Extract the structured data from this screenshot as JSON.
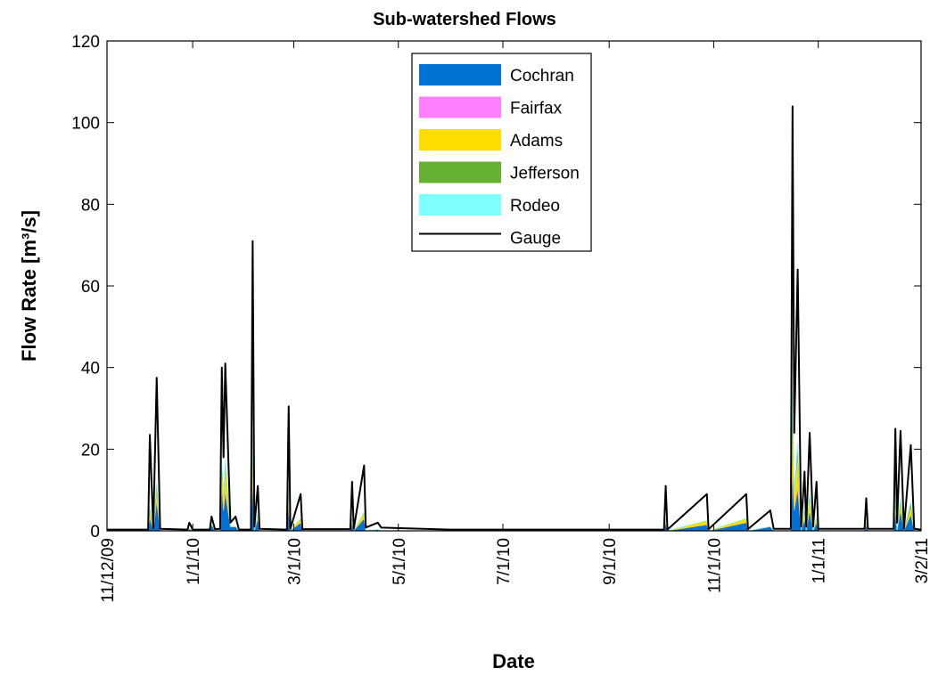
{
  "chart_data": {
    "type": "area",
    "title": "Sub-watershed Flows",
    "x_label": "Date",
    "y_label": "Flow Rate [m³/s]",
    "x": [
      "11/12/09",
      "12/6/09",
      "12/7/09",
      "12/9/09",
      "12/11/09",
      "12/13/09",
      "12/29/09",
      "12/30/09",
      "1/1/10",
      "1/11/10",
      "1/12/10",
      "1/14/10",
      "1/17/10",
      "1/18/10",
      "1/19/10",
      "1/20/10",
      "1/23/10",
      "1/26/10",
      "1/28/10",
      "2/4/10",
      "2/5/10",
      "2/6/10",
      "2/8/10",
      "2/9/10",
      "2/25/10",
      "2/26/10",
      "2/27/10",
      "3/5/10",
      "3/6/10",
      "4/3/10",
      "4/4/10",
      "4/5/10",
      "4/11/10",
      "4/12/10",
      "4/19/10",
      "4/21/10",
      "5/31/10",
      "10/3/10",
      "10/4/10",
      "10/5/10",
      "10/28/10",
      "10/29/10",
      "11/20/10",
      "11/21/10",
      "12/4/10",
      "12/6/10",
      "12/16/10",
      "12/17/10",
      "12/18/10",
      "12/20/10",
      "12/22/10",
      "12/24/10",
      "12/25/10",
      "12/27/10",
      "12/29/10",
      "12/31/10",
      "1/1/11",
      "1/28/11",
      "1/29/11",
      "1/30/11",
      "2/14/11",
      "2/15/11",
      "2/16/11",
      "2/18/11",
      "2/20/11",
      "2/24/11",
      "2/26/11",
      "3/2/11"
    ],
    "series": [
      {
        "name": "Cochran",
        "color": "#0072d6",
        "stacked": true,
        "values": [
          0,
          0,
          3,
          0,
          7,
          0,
          0,
          0.5,
          0,
          0,
          1.5,
          0,
          0,
          10,
          5,
          9,
          1,
          1,
          0,
          0,
          12,
          0,
          3,
          0,
          0,
          6,
          0,
          2,
          0,
          0,
          2,
          0,
          3,
          0,
          0.3,
          0,
          0,
          0,
          2,
          0,
          1.5,
          0,
          2,
          0,
          1,
          0,
          0,
          14,
          5,
          10,
          0,
          3,
          0,
          5,
          0,
          2,
          0,
          0,
          1.5,
          0,
          0,
          5,
          0,
          5,
          0,
          4,
          0,
          0
        ]
      },
      {
        "name": "Fairfax",
        "color": "#ff80ff",
        "stacked": true,
        "values": [
          0,
          0,
          0.3,
          0,
          0.5,
          0,
          0,
          0,
          0,
          0,
          0,
          0,
          0,
          1,
          0,
          1,
          0,
          0,
          0,
          0,
          1,
          0,
          0,
          0,
          0,
          0.5,
          0,
          0,
          0,
          0,
          0,
          0,
          0,
          0,
          0,
          0,
          0,
          0,
          0,
          0,
          0,
          0,
          0,
          0,
          0,
          0,
          0,
          2,
          0,
          1,
          0,
          0,
          0,
          0,
          0,
          0,
          0,
          0,
          0,
          0,
          0,
          0,
          0,
          0,
          0,
          0,
          0,
          0
        ]
      },
      {
        "name": "Adams",
        "color": "#ffdd00",
        "stacked": true,
        "values": [
          0,
          0,
          2,
          0,
          3,
          0,
          0,
          0,
          0,
          0,
          0,
          0,
          0,
          5,
          3,
          6,
          0,
          0,
          0,
          0,
          8,
          0,
          1,
          0,
          0,
          3,
          0,
          1,
          0,
          0,
          1,
          0,
          1.5,
          0,
          0,
          0,
          0,
          0,
          1,
          0,
          1,
          0,
          1,
          0,
          0,
          0,
          0,
          14,
          4,
          8,
          0,
          2,
          0,
          3,
          0,
          1,
          0,
          0,
          1,
          0,
          0,
          2,
          0,
          2,
          0,
          2,
          0,
          0
        ]
      },
      {
        "name": "Jefferson",
        "color": "#66b032",
        "stacked": true,
        "values": [
          0,
          0,
          0.5,
          0,
          1,
          0,
          0,
          0,
          0,
          0,
          0,
          0,
          0,
          1,
          0,
          1,
          0,
          0,
          0,
          0,
          2,
          0,
          0,
          0,
          0,
          1,
          0,
          0,
          0,
          0,
          0,
          0,
          0,
          0,
          0,
          0,
          0,
          0,
          0,
          0,
          0,
          0,
          0,
          0,
          0,
          0,
          0,
          3,
          0,
          2,
          0,
          0,
          0,
          1,
          0,
          0,
          0,
          0,
          0,
          0,
          0,
          1,
          0,
          1,
          0,
          1,
          0,
          0
        ]
      },
      {
        "name": "Rodeo",
        "color": "#80ffff",
        "stacked": true,
        "values": [
          0,
          0,
          0.2,
          0,
          0.3,
          0,
          0,
          0,
          0,
          0,
          0,
          0,
          0,
          0.5,
          0,
          0.5,
          0,
          0,
          0,
          0,
          1,
          0,
          0,
          0,
          0,
          0.3,
          0,
          0,
          0,
          0,
          0,
          0,
          0,
          0,
          0,
          0,
          0,
          0,
          0,
          0,
          0,
          0,
          0,
          0,
          0,
          0,
          0,
          1,
          0,
          0.5,
          0,
          0,
          0,
          0,
          0,
          0,
          0,
          0,
          0,
          0,
          0,
          0,
          0,
          0,
          0,
          0,
          0,
          0
        ]
      },
      {
        "name": "Gauge",
        "color": "#000000",
        "stacked": false,
        "values": [
          0.3,
          0.3,
          23.5,
          0.5,
          37.5,
          0.5,
          0.3,
          2,
          0.3,
          0.3,
          3.5,
          0.4,
          0.5,
          40,
          18,
          41,
          2,
          3.5,
          0.3,
          0.3,
          71,
          1,
          11,
          0.5,
          0.3,
          30.5,
          0.5,
          9,
          0.4,
          0.4,
          12,
          0.5,
          16,
          0.8,
          2,
          0.8,
          0.3,
          0.3,
          11,
          0.3,
          9,
          0.4,
          9,
          0.4,
          5,
          0.5,
          0.5,
          104,
          24,
          64,
          1,
          14.5,
          1,
          24,
          1,
          12,
          0.5,
          0.5,
          8,
          0.5,
          0.5,
          25,
          2,
          24.5,
          0.5,
          21,
          0.5,
          0.3
        ]
      }
    ],
    "xlim": [
      "11/12/09",
      "3/2/11"
    ],
    "xticks": [
      "11/12/09",
      "1/1/10",
      "3/1/10",
      "5/1/10",
      "7/1/10",
      "9/1/10",
      "11/1/10",
      "1/1/11",
      "3/2/11"
    ],
    "ylim": [
      0,
      120
    ],
    "yticks": [
      0,
      20,
      40,
      60,
      80,
      100,
      120
    ],
    "grid": false,
    "legend": "top-center"
  }
}
